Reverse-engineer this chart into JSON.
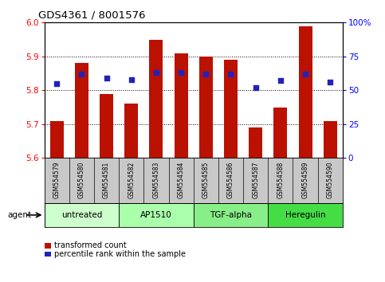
{
  "title": "GDS4361 / 8001576",
  "samples": [
    "GSM554579",
    "GSM554580",
    "GSM554581",
    "GSM554582",
    "GSM554583",
    "GSM554584",
    "GSM554585",
    "GSM554586",
    "GSM554587",
    "GSM554588",
    "GSM554589",
    "GSM554590"
  ],
  "bar_values": [
    5.71,
    5.88,
    5.79,
    5.76,
    5.95,
    5.91,
    5.9,
    5.89,
    5.69,
    5.75,
    5.99,
    5.71
  ],
  "percentile_values": [
    55,
    62,
    59,
    58,
    63,
    63,
    62,
    62,
    52,
    57,
    62,
    56
  ],
  "ylim_left": [
    5.6,
    6.0
  ],
  "ylim_right": [
    0,
    100
  ],
  "yticks_left": [
    5.6,
    5.7,
    5.8,
    5.9,
    6.0
  ],
  "yticks_right": [
    0,
    25,
    50,
    75,
    100
  ],
  "ytick_labels_right": [
    "0",
    "25",
    "50",
    "75",
    "100%"
  ],
  "hlines": [
    5.7,
    5.8,
    5.9
  ],
  "bar_color": "#bb1100",
  "dot_color": "#2222bb",
  "bar_bottom": 5.6,
  "groups": [
    {
      "label": "untreated",
      "start": 0,
      "end": 2,
      "color": "#ccffcc"
    },
    {
      "label": "AP1510",
      "start": 3,
      "end": 5,
      "color": "#aaffaa"
    },
    {
      "label": "TGF-alpha",
      "start": 6,
      "end": 8,
      "color": "#88ee88"
    },
    {
      "label": "Heregulin",
      "start": 9,
      "end": 11,
      "color": "#44dd44"
    }
  ],
  "legend_bar_label": "transformed count",
  "legend_dot_label": "percentile rank within the sample",
  "agent_label": "agent",
  "background_plot": "#ffffff",
  "plot_facecolor": "#ffffff"
}
